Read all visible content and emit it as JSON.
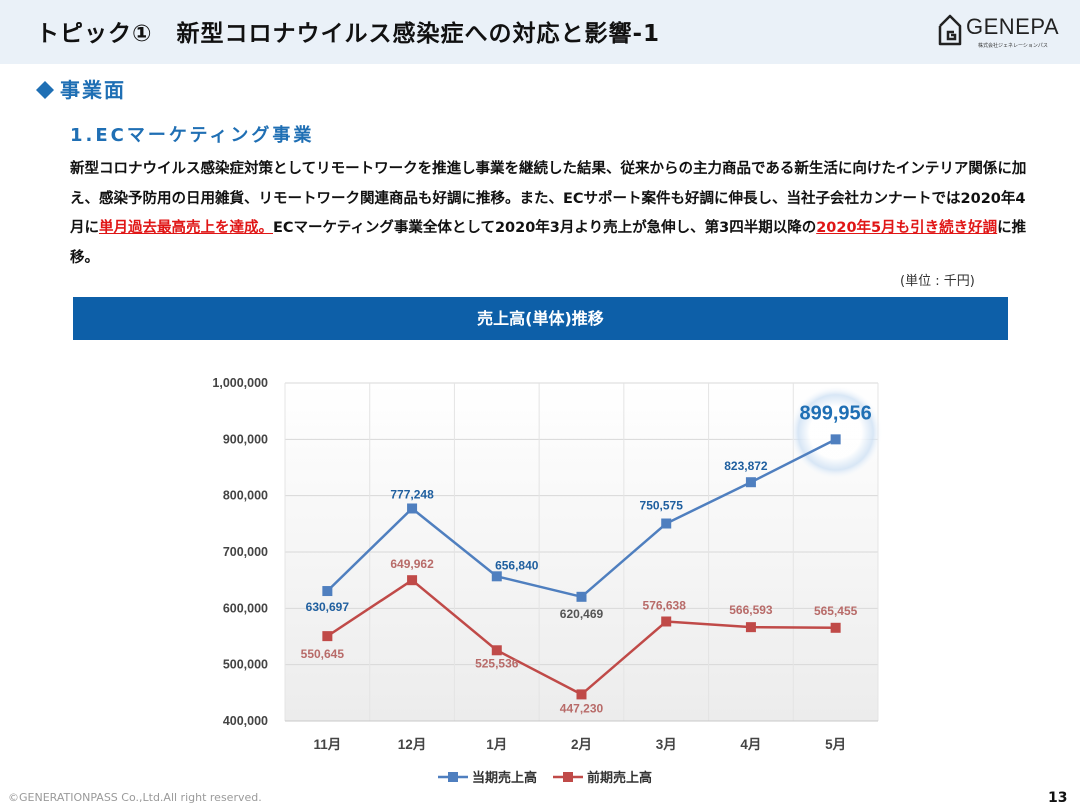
{
  "header": {
    "title": "トピック①　新型コロナウイルス感染症への対応と影響-1",
    "logo_text": "GENEPA",
    "logo_sub": "株式会社ジェネレーションパス",
    "logo_icon": "house-g-icon"
  },
  "section": {
    "title": "事業面",
    "icon": "diamond-icon",
    "icon_color": "#1f6fb4"
  },
  "subsection": {
    "title": "1.ECマーケティング事業"
  },
  "body": {
    "part1": "新型コロナウイルス感染症対策としてリモートワークを推進し事業を継続した結果、従来からの主力商品である新生活に向けたインテリア関係に加え、感染予防用の日用雑貨、リモートワーク関連商品も好調に推移。また、ECサポート案件も好調に伸長し、当社子会社カンナートでは2020年4月に",
    "highlight1": "単月過去最高売上を達成。",
    "part2": "ECマーケティング事業全体として2020年3月より売上が急伸し、第3四半期以降の",
    "highlight2": "2020年5月も引き続き好調",
    "part3": "に推移。",
    "highlight_color": "#e01616"
  },
  "unit_label": "(単位 : 千円)",
  "chart_banner": {
    "title": "売上高(単体)推移",
    "color": "#0d5fa8"
  },
  "chart_data": {
    "type": "line",
    "categories": [
      "11月",
      "12月",
      "1月",
      "2月",
      "3月",
      "4月",
      "5月"
    ],
    "ylim": [
      400000,
      1000000
    ],
    "yticks": [
      "1,000,000",
      "900,000",
      "800,000",
      "700,000",
      "600,000",
      "500,000",
      "400,000"
    ],
    "ytick_values": [
      1000000,
      900000,
      800000,
      700000,
      600000,
      500000,
      400000
    ],
    "grid": true,
    "legend_position": "bottom",
    "series": [
      {
        "name": "当期売上高",
        "color": "#4f7fbf",
        "label_color": "#1f5f9f",
        "values": [
          630697,
          777248,
          656840,
          620469,
          750575,
          823872,
          899956
        ],
        "labels": [
          "630,697",
          "777,248",
          "656,840",
          "620,469",
          "750,575",
          "823,872",
          "899,956"
        ]
      },
      {
        "name": "前期売上高",
        "color": "#c04a48",
        "label_color": "#b86b69",
        "values": [
          550645,
          649962,
          525536,
          447230,
          576638,
          566593,
          565455
        ],
        "labels": [
          "550,645",
          "649,962",
          "525,536",
          "447,230",
          "576,638",
          "566,593",
          "565,455"
        ]
      }
    ],
    "highlight_point": {
      "series": 0,
      "index": 6,
      "label": "899,956"
    }
  },
  "footer": {
    "copyright": "©GENERATIONPASS Co.,Ltd.All right reserved.",
    "page_number": "13"
  }
}
